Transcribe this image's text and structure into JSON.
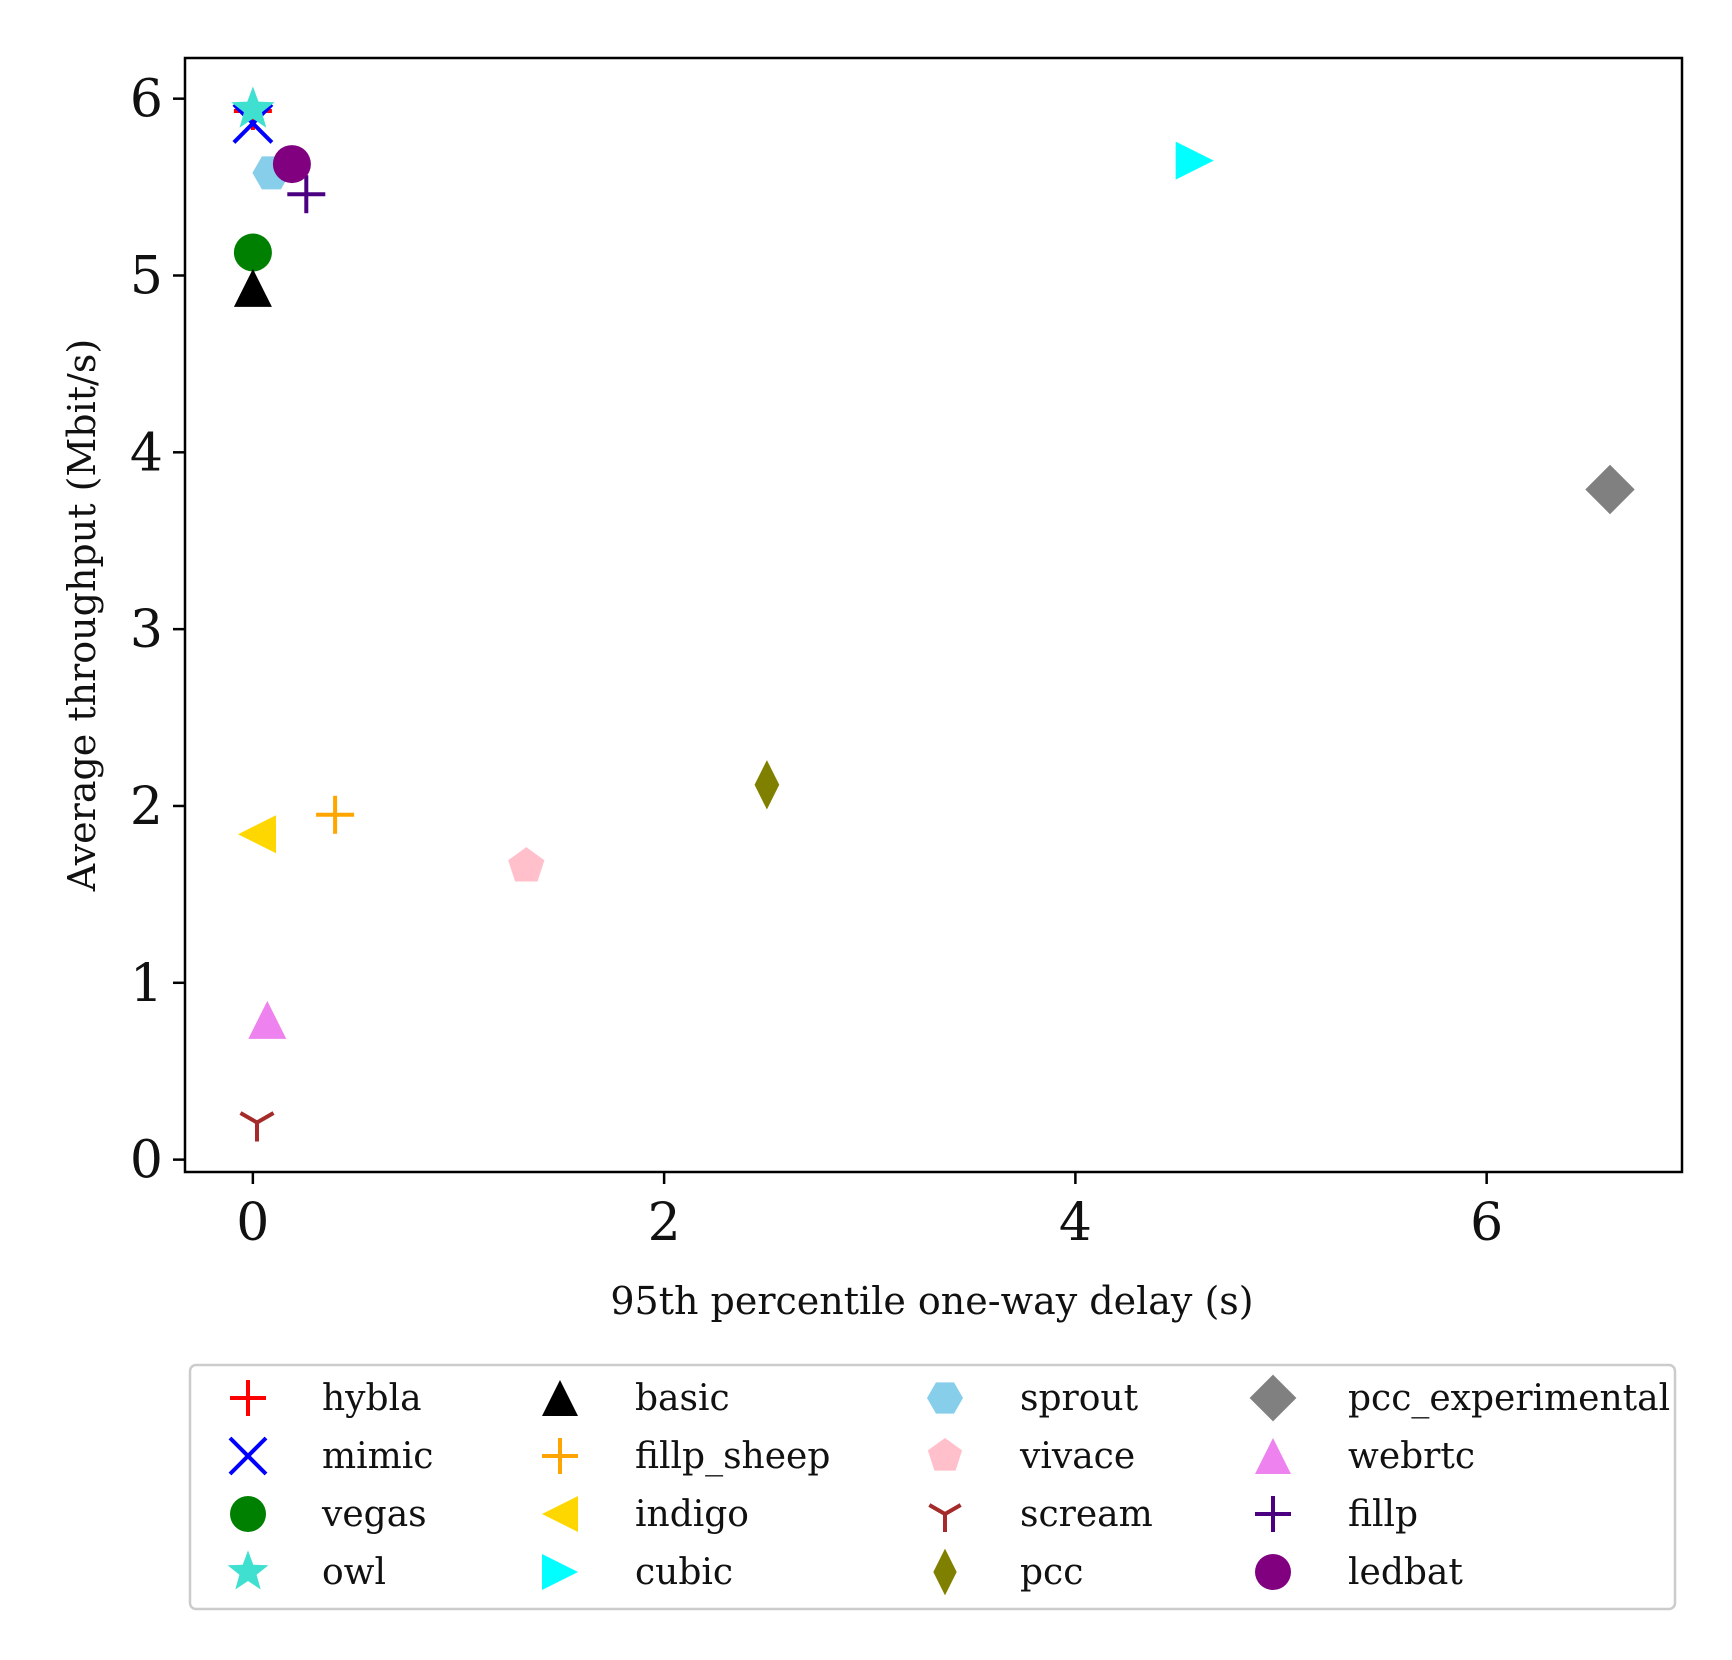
{
  "chart_data": {
    "type": "scatter",
    "title": "",
    "xlabel": "95th percentile one-way delay (s)",
    "ylabel": "Average throughput (Mbit/s)",
    "xlim": [
      -0.33,
      6.95
    ],
    "ylim": [
      -0.07,
      6.23
    ],
    "xticks": [
      0,
      2,
      4,
      6
    ],
    "yticks": [
      0,
      1,
      2,
      3,
      4,
      5,
      6
    ],
    "grid": false,
    "legend_position": "below",
    "series": [
      {
        "name": "hybla",
        "marker": "plus",
        "color": "#ff0000",
        "x": 0.0,
        "y": 5.93
      },
      {
        "name": "mimic",
        "marker": "x",
        "color": "#0000ff",
        "x": 0.0,
        "y": 5.86
      },
      {
        "name": "vegas",
        "marker": "circle",
        "color": "#008000",
        "x": 0.0,
        "y": 5.13
      },
      {
        "name": "owl",
        "marker": "star",
        "color": "#40e0d0",
        "x": 0.0,
        "y": 5.94
      },
      {
        "name": "basic",
        "marker": "triangle-up",
        "color": "#000000",
        "x": 0.0,
        "y": 4.93
      },
      {
        "name": "fillp_sheep",
        "marker": "plus",
        "color": "#ffa500",
        "x": 0.4,
        "y": 1.95
      },
      {
        "name": "indigo",
        "marker": "triangle-left",
        "color": "#ffd700",
        "x": 0.02,
        "y": 1.84
      },
      {
        "name": "cubic",
        "marker": "triangle-right",
        "color": "#00ffff",
        "x": 4.58,
        "y": 5.65
      },
      {
        "name": "sprout",
        "marker": "hexagon",
        "color": "#87ceeb",
        "x": 0.09,
        "y": 5.58
      },
      {
        "name": "vivace",
        "marker": "pentagon",
        "color": "#ffc0cb",
        "x": 1.33,
        "y": 1.66
      },
      {
        "name": "scream",
        "marker": "tri-down",
        "color": "#a52a2a",
        "x": 0.02,
        "y": 0.21
      },
      {
        "name": "pcc",
        "marker": "thin-diamond",
        "color": "#808000",
        "x": 2.5,
        "y": 2.12
      },
      {
        "name": "pcc_experimental",
        "marker": "diamond",
        "color": "#808080",
        "x": 6.6,
        "y": 3.79
      },
      {
        "name": "webrtc",
        "marker": "triangle-up",
        "color": "#ee82ee",
        "x": 0.07,
        "y": 0.79
      },
      {
        "name": "fillp",
        "marker": "plus",
        "color": "#4b0082",
        "x": 0.26,
        "y": 5.46
      },
      {
        "name": "ledbat",
        "marker": "circle",
        "color": "#800080",
        "x": 0.19,
        "y": 5.63
      }
    ]
  }
}
